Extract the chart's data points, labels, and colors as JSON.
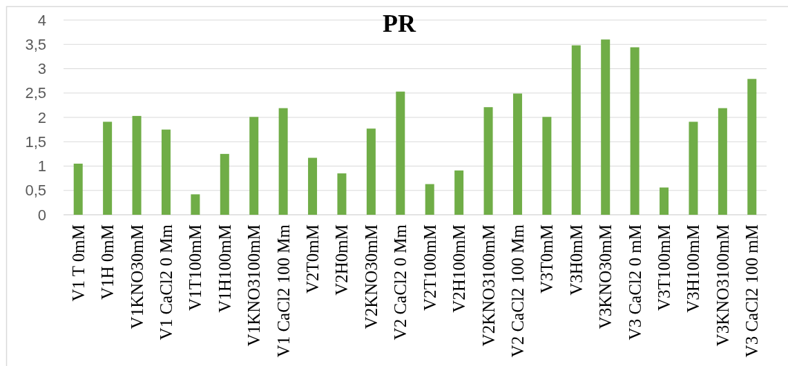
{
  "chart_data": {
    "type": "bar",
    "title": "PR",
    "categories": [
      "V1 T 0mM",
      "V1H 0mM",
      "V1KNO30mM",
      "V1 CaCl2 0 Mm",
      "V1T100mM",
      "V1H100mM",
      "V1KNO3100mM",
      "V1 CaCl2 100 Mm",
      "V2T0mM",
      "V2H0mM",
      "V2KNO30mM",
      "V2 CaCl2 0 Mm",
      "V2T100mM",
      "V2H100mM",
      "V2KNO3100mM",
      "V2 CaCl2 100 Mm",
      "V3T0mM",
      "V3H0mM",
      "V3KNO30mM",
      "V3 CaCl2 0 mM",
      "V3T100mM",
      "V3H100mM",
      "V3KNO3100mM",
      "V3 CaCl2 100 mM"
    ],
    "values": [
      1.05,
      1.91,
      2.03,
      1.75,
      0.42,
      1.25,
      2.01,
      2.19,
      1.17,
      0.85,
      1.77,
      2.53,
      0.63,
      0.91,
      2.21,
      2.49,
      2.01,
      3.48,
      3.6,
      3.44,
      0.56,
      1.91,
      2.19,
      2.79
    ],
    "color": "#70ad47",
    "ylim": [
      0,
      4
    ],
    "yticks": [
      0,
      {
        "value": 0.5,
        "label": "0,5"
      },
      1,
      {
        "value": 1.5,
        "label": "1,5"
      },
      2,
      {
        "value": 2.5,
        "label": "2,5"
      },
      3,
      {
        "value": 3.5,
        "label": "3,5"
      },
      4
    ],
    "grid": "y"
  }
}
